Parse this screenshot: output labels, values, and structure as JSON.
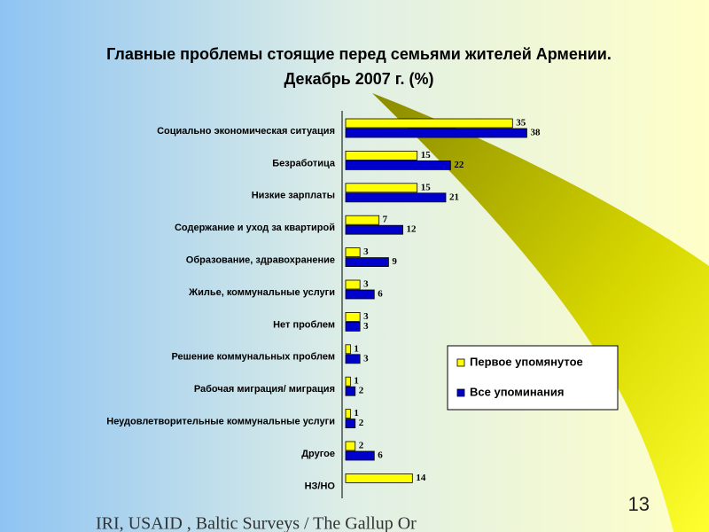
{
  "chart_data": {
    "type": "bar",
    "orientation": "horizontal",
    "title": "Главные проблемы стоящие перед семьями жителей Армении.",
    "subtitle": "Декабрь 2007 г. (%)",
    "categories": [
      "Социально экономическая ситуация",
      "Безработица",
      "Низкие зарплаты",
      "Содержание и уход за квартирой",
      "Образование, здравохранение",
      "Жилье, коммунальные услуги",
      "Нет проблем",
      "Решение коммунальных проблем",
      "Рабочая миграция/ миграция",
      "Неудовлетворительные коммунальные услуги",
      "Другое",
      "НЗ/НО"
    ],
    "series": [
      {
        "name": "Первое упомянутое",
        "color": "#ffff00",
        "values": [
          35,
          15,
          15,
          7,
          3,
          3,
          3,
          1,
          1,
          1,
          2,
          14
        ]
      },
      {
        "name": "Все упоминания",
        "color": "#0000cc",
        "values": [
          38,
          22,
          21,
          12,
          9,
          6,
          3,
          3,
          2,
          2,
          6,
          null
        ]
      }
    ],
    "legend": "right",
    "source": "IRI, USAID , Baltic Surveys / The Gallup Or",
    "page_number": "13"
  }
}
